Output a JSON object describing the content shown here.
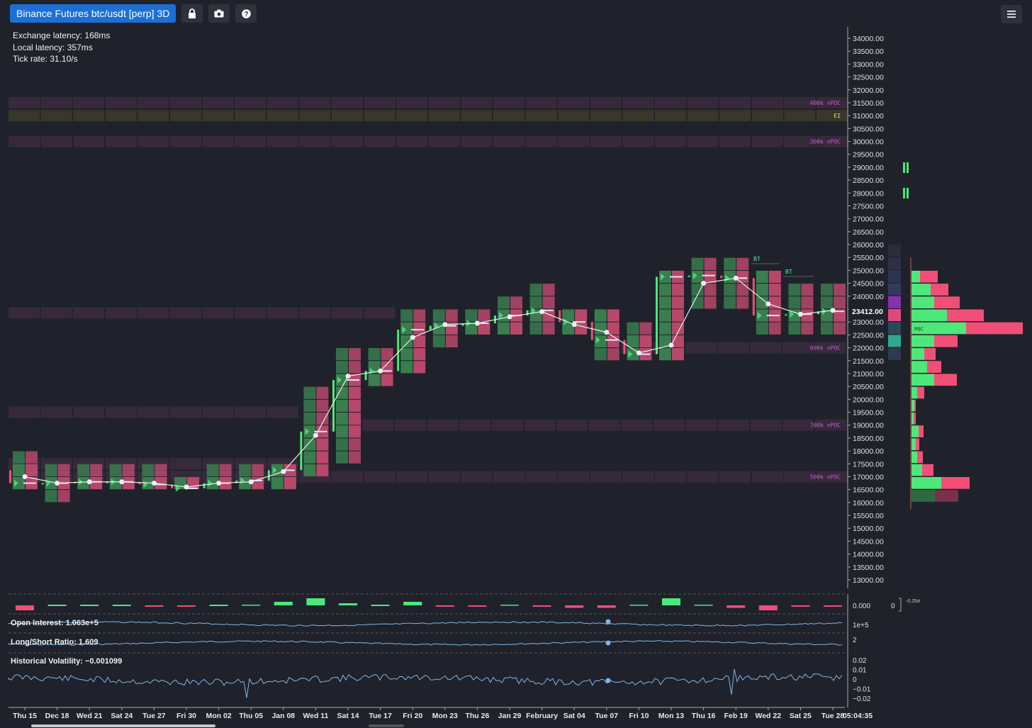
{
  "header": {
    "title": "Binance Futures btc/usdt [perp] 3D",
    "lock_icon": "lock-icon",
    "camera_icon": "camera-icon",
    "help_icon": "help-icon",
    "menu_icon": "menu-icon"
  },
  "stats": {
    "exchange_latency": "Exchange latency: 168ms",
    "local_latency": "Local latency: 357ms",
    "tick_rate": "Tick rate: 31.10/s"
  },
  "price_axis": {
    "ticks": [
      "34000.00",
      "33500.00",
      "33000.00",
      "32500.00",
      "32000.00",
      "31500.00",
      "31000.00",
      "30500.00",
      "30000.00",
      "29500.00",
      "29000.00",
      "28500.00",
      "28000.00",
      "27500.00",
      "27000.00",
      "26500.00",
      "26000.00",
      "25500.00",
      "25000.00",
      "24500.00",
      "24000.00",
      "23500.00",
      "23000.00",
      "22500.00",
      "22000.00",
      "21500.00",
      "21000.00",
      "20500.00",
      "20000.00",
      "19500.00",
      "19000.00",
      "18500.00",
      "18000.00",
      "17500.00",
      "17000.00",
      "16500.00",
      "16000.00",
      "15500.00",
      "15000.00",
      "14500.00",
      "14000.00",
      "13500.00",
      "13000.00"
    ],
    "current_price": "23412.00"
  },
  "levels": [
    {
      "label": "400k nPOC",
      "price": 31500
    },
    {
      "label": "EI",
      "price": 31000
    },
    {
      "label": "300k nPOC",
      "price": 30000
    },
    {
      "label": "600k nPOC",
      "price": 22000
    },
    {
      "label": "700k nPOC",
      "price": 19000
    },
    {
      "label": "500k nPOC",
      "price": 17000
    }
  ],
  "markers": {
    "bt1": "BT",
    "bt2": "BT",
    "poc": "POC"
  },
  "time_axis": {
    "labels": [
      "Thu 15",
      "Dec 18",
      "Wed 21",
      "Sat 24",
      "Tue 27",
      "Fri 30",
      "Mon 02",
      "Thu 05",
      "Jan 08",
      "Wed 11",
      "Sat 14",
      "Tue 17",
      "Fri 20",
      "Mon 23",
      "Thu 26",
      "Jan 29",
      "February",
      "Sat 04",
      "Tue 07",
      "Fri 10",
      "Mon 13",
      "Thu 16",
      "Feb 19",
      "Wed 22",
      "Sat 25",
      "Tue 28"
    ],
    "current_time": "05:04:35"
  },
  "indicators": {
    "delta_axis": "0.000",
    "delta_right": "0",
    "delta_sigma": "-0.25σ",
    "open_interest": "Open Interest: 1.063e+5",
    "oi_axis": "1e+5",
    "long_short": "Long/Short Ratio: 1.609",
    "ls_axis": "2",
    "volatility": "Historical Volatility: −0.001099",
    "vol_axis": [
      "0.02",
      "0.01",
      "0",
      "−0.01",
      "−0.02"
    ]
  },
  "colors": {
    "background": "#1f222b",
    "bull": "#3a7d4f",
    "bull_bright": "#4ee87a",
    "bear": "#b7486a",
    "bear_bright": "#f24f78",
    "npoc_band": "#3a2a3e",
    "ei_band": "#3a3b2a",
    "line": "#7fb6e8",
    "accent": "#1c6fd6"
  },
  "chart_data": {
    "type": "line",
    "title": "",
    "xlabel": "",
    "ylabel": "",
    "ylim": [
      12500,
      34500
    ],
    "x": [
      "Thu 15",
      "Dec 18",
      "Wed 21",
      "Sat 24",
      "Tue 27",
      "Fri 30",
      "Mon 02",
      "Thu 05",
      "Jan 08",
      "Wed 11",
      "Sat 14",
      "Tue 17",
      "Fri 20",
      "Mon 23",
      "Thu 26",
      "Jan 29",
      "February",
      "Sat 04",
      "Tue 07",
      "Fri 10",
      "Mon 13",
      "Thu 16",
      "Feb 19",
      "Wed 22",
      "Sat 25",
      "Tue 28"
    ],
    "series": [
      {
        "name": "",
        "values": [
          17000,
          16750,
          16800,
          16800,
          16750,
          16600,
          16750,
          16800,
          17200,
          18600,
          20900,
          21100,
          22400,
          22900,
          22950,
          23200,
          23400,
          22900,
          22600,
          21800,
          22100,
          24500,
          24700,
          23700,
          23300,
          23450
        ]
      }
    ],
    "candles": [
      {
        "o": 17250,
        "h": 18000,
        "l": 16500,
        "c": 16750
      },
      {
        "o": 16750,
        "h": 17250,
        "l": 16000,
        "c": 16750
      },
      {
        "o": 16750,
        "h": 17250,
        "l": 16500,
        "c": 16800
      },
      {
        "o": 16800,
        "h": 17250,
        "l": 16500,
        "c": 16800
      },
      {
        "o": 16800,
        "h": 17250,
        "l": 16500,
        "c": 16700
      },
      {
        "o": 16700,
        "h": 17000,
        "l": 16500,
        "c": 16550
      },
      {
        "o": 16550,
        "h": 17250,
        "l": 16500,
        "c": 16750
      },
      {
        "o": 16750,
        "h": 17250,
        "l": 16500,
        "c": 16850
      },
      {
        "o": 16850,
        "h": 17500,
        "l": 16750,
        "c": 17250
      },
      {
        "o": 17250,
        "h": 20250,
        "l": 17250,
        "c": 18750
      },
      {
        "o": 18750,
        "h": 21750,
        "l": 17750,
        "c": 20750
      },
      {
        "o": 20750,
        "h": 21750,
        "l": 20500,
        "c": 21100
      },
      {
        "o": 21100,
        "h": 23500,
        "l": 21000,
        "c": 22700
      },
      {
        "o": 22700,
        "h": 23500,
        "l": 22250,
        "c": 22850
      },
      {
        "o": 22850,
        "h": 23500,
        "l": 22750,
        "c": 22950
      },
      {
        "o": 22950,
        "h": 24000,
        "l": 22750,
        "c": 23250
      },
      {
        "o": 23250,
        "h": 24500,
        "l": 22750,
        "c": 23450
      },
      {
        "o": 23450,
        "h": 23500,
        "l": 22750,
        "c": 23000
      },
      {
        "o": 23000,
        "h": 23500,
        "l": 21500,
        "c": 22300
      },
      {
        "o": 22300,
        "h": 22750,
        "l": 21500,
        "c": 21750
      },
      {
        "o": 21750,
        "h": 24750,
        "l": 21500,
        "c": 24750
      },
      {
        "o": 24750,
        "h": 25500,
        "l": 23500,
        "c": 24800
      },
      {
        "o": 24800,
        "h": 25500,
        "l": 23750,
        "c": 24700
      },
      {
        "o": 24700,
        "h": 24750,
        "l": 22750,
        "c": 23250
      },
      {
        "o": 23250,
        "h": 24250,
        "l": 22750,
        "c": 23300
      },
      {
        "o": 23300,
        "h": 24250,
        "l": 22750,
        "c": 23412
      }
    ],
    "volume_profile": [
      {
        "price": 24750,
        "buy": 12,
        "sell": 25
      },
      {
        "price": 24250,
        "buy": 27,
        "sell": 25
      },
      {
        "price": 23750,
        "buy": 32,
        "sell": 36
      },
      {
        "price": 23250,
        "buy": 50,
        "sell": 52
      },
      {
        "price": 22750,
        "buy": 77,
        "sell": 80
      },
      {
        "price": 22250,
        "buy": 32,
        "sell": 33
      },
      {
        "price": 21750,
        "buy": 18,
        "sell": 16
      },
      {
        "price": 21250,
        "buy": 22,
        "sell": 20
      },
      {
        "price": 20750,
        "buy": 32,
        "sell": 32
      },
      {
        "price": 20250,
        "buy": 8,
        "sell": 10
      },
      {
        "price": 19750,
        "buy": 4,
        "sell": 2
      },
      {
        "price": 19250,
        "buy": 3,
        "sell": 3
      },
      {
        "price": 18750,
        "buy": 10,
        "sell": 7
      },
      {
        "price": 18250,
        "buy": 6,
        "sell": 5
      },
      {
        "price": 17750,
        "buy": 8,
        "sell": 8
      },
      {
        "price": 17250,
        "buy": 15,
        "sell": 16
      },
      {
        "price": 16750,
        "buy": 42,
        "sell": 40
      },
      {
        "price": 16250,
        "buy": 33,
        "sell": 33
      }
    ],
    "delta": [
      -1,
      0.1,
      0.1,
      0.1,
      -0.1,
      -0.1,
      0.1,
      0,
      0.5,
      1,
      0.3,
      0.1,
      0.5,
      -0.1,
      -0.1,
      0,
      -0.1,
      -0.5,
      -0.5,
      0,
      1,
      0,
      -0.5,
      -1,
      -0.1,
      -0.1
    ]
  }
}
